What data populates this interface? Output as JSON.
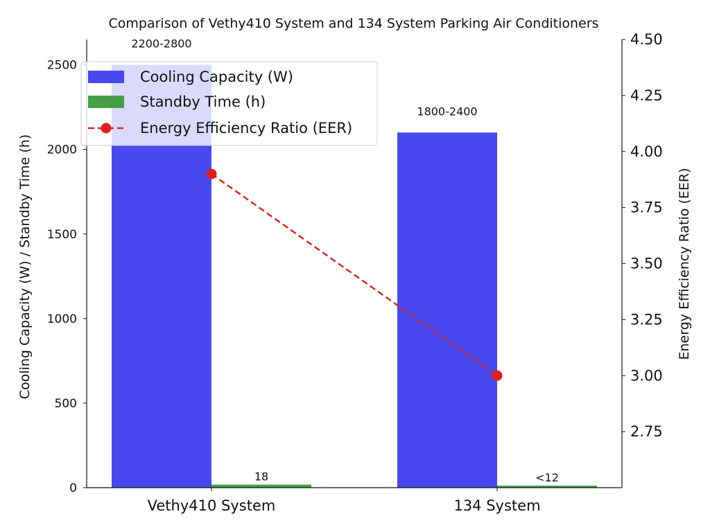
{
  "chart_data": {
    "type": "bar",
    "title": "Comparison of Vethy410 System and 134 System Parking Air Conditioners",
    "categories": [
      "Vethy410 System",
      "134 System"
    ],
    "series": [
      {
        "name": "Cooling Capacity (W)",
        "axis": "left",
        "kind": "bar",
        "color": "#4848f0",
        "values": [
          2500,
          2100
        ],
        "labels": [
          "2200-2800",
          "1800-2400"
        ]
      },
      {
        "name": "Standby Time (h)",
        "axis": "left",
        "kind": "bar",
        "color": "#45a045",
        "values": [
          18,
          12
        ],
        "labels": [
          "18",
          "<12"
        ]
      },
      {
        "name": "Energy Efficiency Ratio (EER)",
        "axis": "right",
        "kind": "line",
        "color": "#e01e1e",
        "style": "dashed",
        "marker": "circle",
        "values": [
          3.9,
          3.0
        ]
      }
    ],
    "ylabel": "Cooling Capacity (W) / Standby Time (h)",
    "ylabel_right": "Energy Efficiency Ratio (EER)",
    "ylim": [
      0,
      2650
    ],
    "ylim_right": [
      2.5,
      4.5
    ],
    "yticks": [
      0,
      500,
      1000,
      1500,
      2000,
      2500
    ],
    "yticks_right": [
      "2.75",
      "3.00",
      "3.25",
      "3.50",
      "3.75",
      "4.00",
      "4.25",
      "4.50"
    ],
    "legend_position": "top-left",
    "grid": false
  }
}
